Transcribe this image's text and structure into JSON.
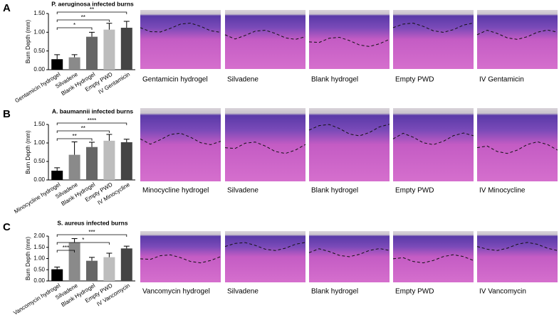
{
  "chart_data": [
    {
      "type": "bar",
      "panel": "A",
      "title": "P. aeruginosa infected burns",
      "y_label": "Burn Depth (mm)",
      "categories": [
        "Gentamicin hydrogel",
        "Silvadene",
        "Blank Hydrogel",
        "Empty PWD",
        "IV Gentamicin"
      ],
      "values": [
        0.28,
        0.33,
        0.88,
        1.07,
        1.12
      ],
      "errors": [
        0.12,
        0.07,
        0.12,
        0.17,
        0.17
      ],
      "colors": [
        "#000000",
        "#8a8a8a",
        "#666666",
        "#bdbdbd",
        "#444444"
      ],
      "ylim": [
        0,
        1.5
      ],
      "yticks": [
        {
          "value": 0,
          "label": "0.00"
        },
        {
          "value": 0.5,
          "label": "0.50"
        },
        {
          "value": 1,
          "label": "1.00"
        },
        {
          "value": 1.5,
          "label": "1.50"
        }
      ],
      "significance": [
        {
          "between": [
            "Gentamicin hydrogel",
            "IV Gentamicin"
          ],
          "label": "**"
        },
        {
          "between": [
            "Gentamicin hydrogel",
            "Empty PWD"
          ],
          "label": "**"
        },
        {
          "between": [
            "Gentamicin hydrogel",
            "Blank Hydrogel"
          ],
          "label": "*"
        }
      ],
      "image_captions": [
        "Gentamicin hydrogel",
        "Silvadene",
        "Blank hydrogel",
        "Empty PWD",
        "IV Gentamicin"
      ]
    },
    {
      "type": "bar",
      "panel": "B",
      "title": "A. baumannii infected burns",
      "y_label": "Burn Depth (mm)",
      "categories": [
        "Minocycline hydrogel",
        "Silvadene",
        "Blank Hydrogel",
        "Empty PWD",
        "IV Minocycline"
      ],
      "values": [
        0.25,
        0.68,
        0.89,
        1.06,
        1.02
      ],
      "errors": [
        0.08,
        0.35,
        0.13,
        0.17,
        0.08
      ],
      "colors": [
        "#000000",
        "#8a8a8a",
        "#666666",
        "#bdbdbd",
        "#444444"
      ],
      "ylim": [
        0,
        1.5
      ],
      "yticks": [
        {
          "value": 0,
          "label": "0.00"
        },
        {
          "value": 0.5,
          "label": "0.50"
        },
        {
          "value": 1,
          "label": "1.00"
        },
        {
          "value": 1.5,
          "label": "1.50"
        }
      ],
      "significance": [
        {
          "between": [
            "Minocycline hydrogel",
            "IV Minocycline"
          ],
          "label": "****"
        },
        {
          "between": [
            "Minocycline hydrogel",
            "Empty PWD"
          ],
          "label": "**"
        },
        {
          "between": [
            "Minocycline hydrogel",
            "Blank Hydrogel"
          ],
          "label": "**"
        }
      ],
      "image_captions": [
        "Minocycline hydrogel",
        "Silvadene",
        "Blank hydrogel",
        "Empty PWD",
        "IV Minocycline"
      ]
    },
    {
      "type": "bar",
      "panel": "C",
      "title": "S. aureus infected burns",
      "y_label": "Burn Depth (mm)",
      "categories": [
        "Vancomycin hydrogel",
        "Silvadene",
        "Blank Hydrogel",
        "Empty PWD",
        "IV Vancomycin"
      ],
      "values": [
        0.52,
        1.72,
        0.9,
        1.06,
        1.45
      ],
      "errors": [
        0.1,
        0.17,
        0.15,
        0.18,
        0.1
      ],
      "colors": [
        "#000000",
        "#8a8a8a",
        "#666666",
        "#bdbdbd",
        "#444444"
      ],
      "ylim": [
        0,
        2
      ],
      "yticks": [
        {
          "value": 0,
          "label": "0.00"
        },
        {
          "value": 0.5,
          "label": "0.50"
        },
        {
          "value": 1,
          "label": "1.00"
        },
        {
          "value": 1.5,
          "label": "1.50"
        },
        {
          "value": 2,
          "label": "2.00"
        }
      ],
      "significance": [
        {
          "between": [
            "Vancomycin hydrogel",
            "IV Vancomycin"
          ],
          "label": "***"
        },
        {
          "between": [
            "Vancomycin hydrogel",
            "Empty PWD"
          ],
          "label": "*"
        },
        {
          "between": [
            "Vancomycin hydrogel",
            "Silvadene"
          ],
          "label": "***"
        }
      ],
      "image_captions": [
        "Vancomycin hydrogel",
        "Silvadene",
        "Blank hydrogel",
        "Empty PWD",
        "IV Vancomycin"
      ]
    }
  ]
}
